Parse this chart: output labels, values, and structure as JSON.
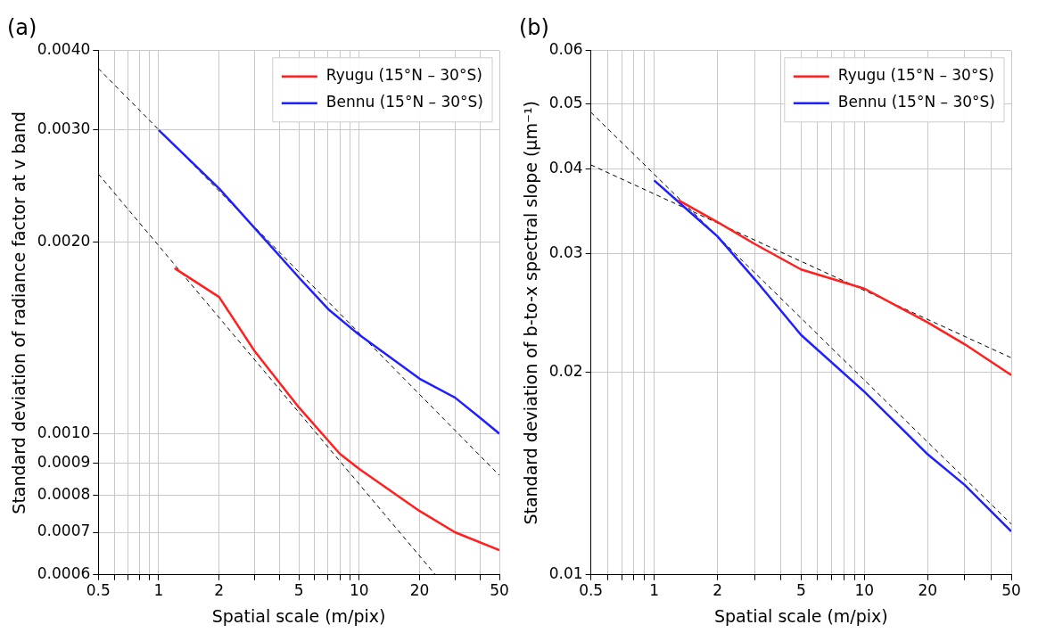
{
  "chart_data": [
    {
      "type": "line",
      "title": "(a)",
      "xlabel": "Spatial scale (m/pix)",
      "ylabel": "Standard deviation of radiance factor at v band",
      "log": "xy",
      "grid": true,
      "legend": "top right",
      "marker": "none",
      "xlim": [
        0.5,
        50
      ],
      "ylim": [
        0.0006,
        0.004
      ],
      "xticks": [
        0.5,
        {
          "value": 0.6,
          "label": null
        },
        {
          "value": 0.7,
          "label": null
        },
        {
          "value": 0.8,
          "label": null
        },
        {
          "value": 0.9,
          "label": null
        },
        1,
        2,
        {
          "value": 3,
          "label": null
        },
        {
          "value": 4,
          "label": null
        },
        5,
        {
          "value": 6,
          "label": null
        },
        {
          "value": 7,
          "label": null
        },
        {
          "value": 8,
          "label": null
        },
        {
          "value": 9,
          "label": null
        },
        10,
        20,
        {
          "value": 30,
          "label": null
        },
        {
          "value": 40,
          "label": null
        },
        50
      ],
      "yticks": [
        {
          "value": 0.0006,
          "label": "0.0006"
        },
        {
          "value": 0.0007,
          "label": "0.0007"
        },
        {
          "value": 0.0008,
          "label": "0.0008"
        },
        {
          "value": 0.0009,
          "label": "0.0009"
        },
        {
          "value": 0.001,
          "label": "0.0010"
        },
        {
          "value": 0.002,
          "label": "0.0020"
        },
        {
          "value": 0.003,
          "label": "0.0030"
        },
        {
          "value": 0.004,
          "label": "0.0040"
        }
      ],
      "series": [
        {
          "name": "Ryugu (15°N – 30°S)",
          "color": "#ff2020",
          "type": "line",
          "x": [
            1.2,
            2,
            3,
            5,
            8,
            10,
            20,
            30,
            50
          ],
          "values": [
            0.00182,
            0.00164,
            0.00135,
            0.0011,
            0.00093,
            0.00088,
            0.000756,
            0.0007,
            0.000656
          ]
        },
        {
          "name": "Bennu (15°N – 30°S)",
          "color": "#2020ff",
          "type": "line",
          "x": [
            1,
            2,
            5,
            7,
            10,
            20,
            30,
            40,
            50
          ],
          "values": [
            0.003,
            0.00243,
            0.00176,
            0.00157,
            0.00143,
            0.00122,
            0.00114,
            0.00106,
            0.001
          ]
        },
        {
          "color": "#000000",
          "type": "line",
          "line_style": "dashed",
          "x": [
            0.5,
            50
          ],
          "values": [
            0.00375,
            0.00086
          ]
        },
        {
          "color": "#000000",
          "type": "line",
          "line_style": "dashed",
          "x": [
            0.5,
            24
          ],
          "values": [
            0.00256,
            0.0006
          ]
        }
      ]
    },
    {
      "type": "line",
      "title": "(b)",
      "xlabel": "Spatial scale (m/pix)",
      "ylabel": "Standard deviation of b-to-x spectral slope (μm⁻¹)",
      "log": "xy",
      "grid": true,
      "legend": "top right",
      "marker": "none",
      "xlim": [
        0.5,
        50
      ],
      "ylim": [
        0.01,
        0.06
      ],
      "xticks": [
        0.5,
        {
          "value": 0.6,
          "label": null
        },
        {
          "value": 0.7,
          "label": null
        },
        {
          "value": 0.8,
          "label": null
        },
        {
          "value": 0.9,
          "label": null
        },
        1,
        2,
        {
          "value": 3,
          "label": null
        },
        {
          "value": 4,
          "label": null
        },
        5,
        {
          "value": 6,
          "label": null
        },
        {
          "value": 7,
          "label": null
        },
        {
          "value": 8,
          "label": null
        },
        {
          "value": 9,
          "label": null
        },
        10,
        20,
        {
          "value": 30,
          "label": null
        },
        {
          "value": 40,
          "label": null
        },
        50
      ],
      "yticks": [
        0.01,
        0.02,
        0.03,
        0.04,
        0.05,
        0.06
      ],
      "series": [
        {
          "name": "Ryugu (15°N – 30°S)",
          "color": "#ff2020",
          "type": "line",
          "x": [
            1.3,
            2,
            3,
            5,
            10,
            20,
            30,
            50
          ],
          "values": [
            0.036,
            0.0334,
            0.031,
            0.0284,
            0.0266,
            0.0237,
            0.022,
            0.0198
          ]
        },
        {
          "name": "Bennu (15°N – 30°S)",
          "color": "#2020ff",
          "type": "line",
          "x": [
            1,
            2,
            3,
            5,
            10,
            20,
            30,
            50
          ],
          "values": [
            0.0385,
            0.0318,
            0.0275,
            0.0227,
            0.0187,
            0.0151,
            0.0136,
            0.0116
          ]
        },
        {
          "color": "#000000",
          "type": "line",
          "line_style": "dashed",
          "x": [
            0.5,
            50
          ],
          "values": [
            0.0406,
            0.021
          ]
        },
        {
          "color": "#000000",
          "type": "line",
          "line_style": "dashed",
          "x": [
            0.5,
            50
          ],
          "values": [
            0.0486,
            0.0119
          ]
        }
      ]
    }
  ]
}
